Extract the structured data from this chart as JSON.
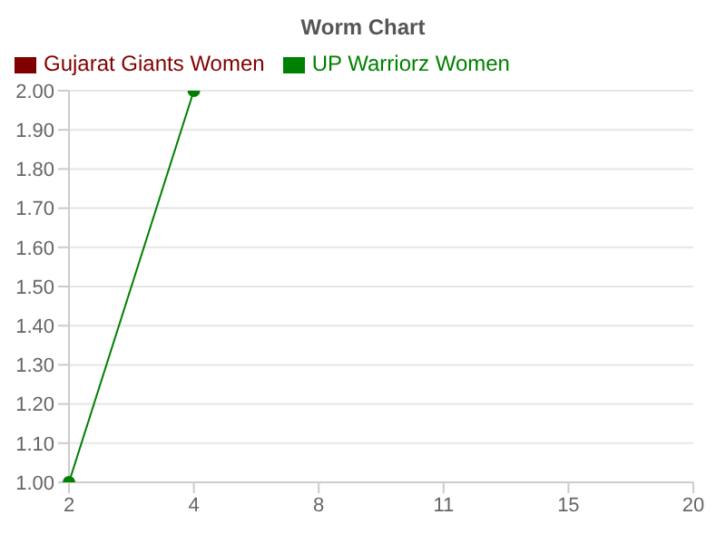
{
  "chart_data": {
    "type": "line",
    "title": "Worm Chart",
    "categories": [
      "2",
      "4",
      "8",
      "11",
      "15",
      "20"
    ],
    "series": [
      {
        "name": "UP Warriorz Women",
        "color": "#008000",
        "values": [
          1.0,
          2.0,
          null,
          null,
          null,
          null
        ]
      },
      {
        "name": "Gujarat Giants Women",
        "color": "#800000",
        "values": [
          null,
          null,
          null,
          null,
          null,
          null
        ]
      }
    ],
    "ylim": [
      1.0,
      2.0
    ],
    "yticks": [
      {
        "value": 1.0,
        "label": "1.00"
      },
      {
        "value": 1.1,
        "label": "1.10"
      },
      {
        "value": 1.2,
        "label": "1.20"
      },
      {
        "value": 1.3,
        "label": "1.30"
      },
      {
        "value": 1.4,
        "label": "1.40"
      },
      {
        "value": 1.5,
        "label": "1.50"
      },
      {
        "value": 1.6,
        "label": "1.60"
      },
      {
        "value": 1.7,
        "label": "1.70"
      },
      {
        "value": 1.8,
        "label": "1.80"
      },
      {
        "value": 1.9,
        "label": "1.90"
      },
      {
        "value": 2.0,
        "label": "2.00"
      }
    ],
    "grid": "y",
    "legend": "top",
    "marker": "circle"
  }
}
